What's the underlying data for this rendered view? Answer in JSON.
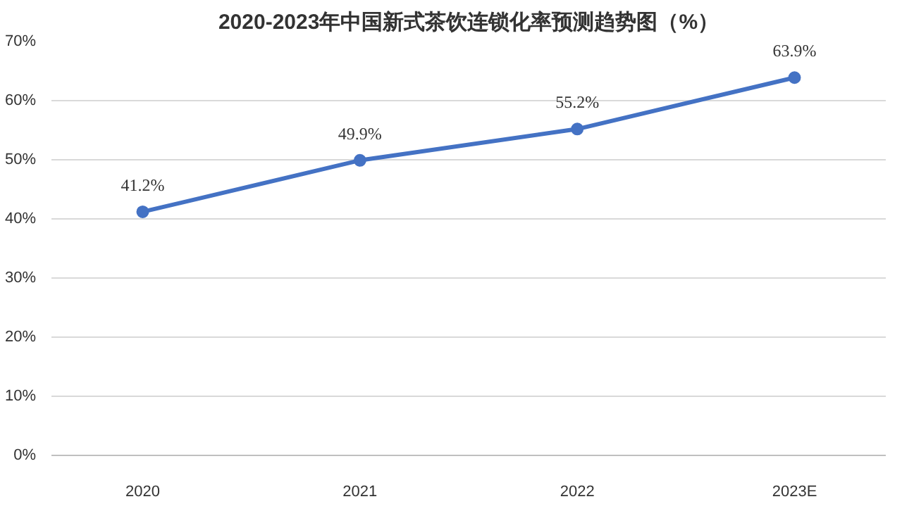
{
  "chart_data": {
    "type": "line",
    "title": "2020-2023年中国新式茶饮连锁化率预测趋势图（%）",
    "categories": [
      "2020",
      "2021",
      "2022",
      "2023E"
    ],
    "series": [
      {
        "color": "#4472c4",
        "values": [
          41.2,
          49.9,
          55.2,
          63.9
        ],
        "value_labels": [
          "41.2%",
          "49.9%",
          "55.2%",
          "63.9%"
        ]
      }
    ],
    "ylim": [
      0,
      70
    ],
    "yticks": [
      {
        "value": 0,
        "label": "0%"
      },
      {
        "value": 10,
        "label": "10%"
      },
      {
        "value": 20,
        "label": "20%"
      },
      {
        "value": 30,
        "label": "30%"
      },
      {
        "value": 40,
        "label": "40%"
      },
      {
        "value": 50,
        "label": "50%"
      },
      {
        "value": 60,
        "label": "60%"
      },
      {
        "value": 70,
        "label": "70%"
      }
    ],
    "grid": "y",
    "marker": "circle",
    "line_style": "solid"
  }
}
